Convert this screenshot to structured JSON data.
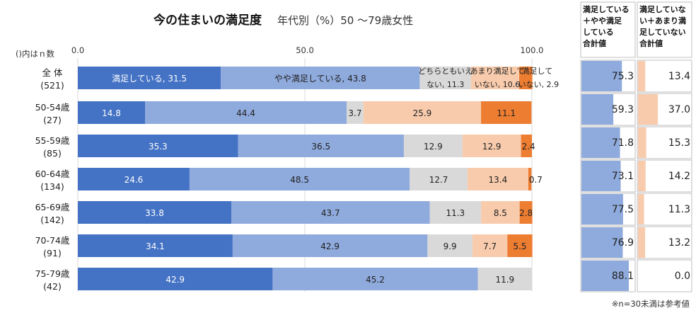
{
  "chart_data": {
    "type": "bar",
    "stacked": "100%",
    "orientation": "horizontal",
    "title": "今の住まいの満足度",
    "subtitle": "年代別（%）50 ～79歳女性",
    "n_label": "()内はｎ数",
    "x_ticks": [
      "0.0",
      "50.0",
      "100.0"
    ],
    "xlim": [
      0,
      100
    ],
    "categories": [
      {
        "label": "全 体",
        "n": "(521)"
      },
      {
        "label": "50-54歳",
        "n": "(27)"
      },
      {
        "label": "55-59歳",
        "n": "(85)"
      },
      {
        "label": "60-64歳",
        "n": "(134)"
      },
      {
        "label": "65-69歳",
        "n": "(142)"
      },
      {
        "label": "70-74歳",
        "n": "(91)"
      },
      {
        "label": "75-79歳",
        "n": "(42)"
      }
    ],
    "series": [
      {
        "name": "満足している",
        "color": "#4472c4",
        "text_color": "#ffffff",
        "values": [
          31.5,
          14.8,
          35.3,
          24.6,
          33.8,
          34.1,
          42.9
        ]
      },
      {
        "name": "やや満足している",
        "color": "#8faadc",
        "text_color": "#222222",
        "values": [
          43.8,
          44.4,
          36.5,
          48.5,
          43.7,
          42.9,
          45.2
        ]
      },
      {
        "name": "どちらともいえない",
        "color": "#d9d9d9",
        "text_color": "#222222",
        "values": [
          11.3,
          3.7,
          12.9,
          12.7,
          11.3,
          9.9,
          11.9
        ]
      },
      {
        "name": "あまり満足していない",
        "color": "#f8cbad",
        "text_color": "#222222",
        "values": [
          10.6,
          25.9,
          12.9,
          13.4,
          8.5,
          7.7,
          0
        ]
      },
      {
        "name": "満足していない",
        "color": "#ed7d31",
        "text_color": "#222222",
        "values": [
          2.9,
          11.1,
          2.4,
          0.7,
          2.8,
          5.5,
          0
        ]
      }
    ],
    "first_row_labels": {
      "s0": "満足している, 31.5",
      "s1": "やや満足している, 43.8",
      "s2_line1": "どちらともいえ",
      "s2_line2": "ない, 11.3",
      "s3_line1": "あまり満足して",
      "s3_line2": "いない, 10.6",
      "s4_line1": "満足して",
      "s4_line2": "いない, 2.9"
    },
    "summary_columns": [
      {
        "header": [
          "満足している",
          "＋やや満足",
          "している",
          "合計値"
        ],
        "color": "#8faadc",
        "values": [
          "75.3",
          "59.3",
          "71.8",
          "73.1",
          "77.5",
          "76.9",
          "88.1"
        ],
        "value_nums": [
          75.3,
          59.3,
          71.8,
          73.1,
          77.5,
          76.9,
          88.1
        ]
      },
      {
        "header": [
          "満足していな",
          "い＋あまり満",
          "足していない",
          "合計値"
        ],
        "color": "#f8cbad",
        "values": [
          "13.4",
          "37.0",
          "15.3",
          "14.2",
          "11.3",
          "13.2",
          "0.0"
        ],
        "value_nums": [
          13.4,
          37.0,
          15.3,
          14.2,
          11.3,
          13.2,
          0.0
        ]
      }
    ],
    "footnote": "※n=30未満は参考値"
  }
}
